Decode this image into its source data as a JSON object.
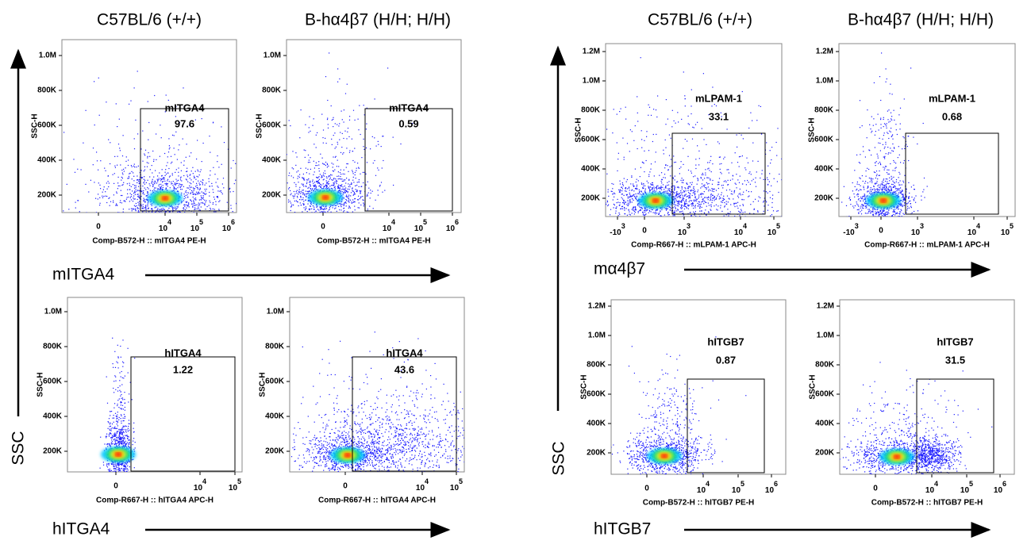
{
  "groups": [
    {
      "headers": [
        "C57BL/6 (+/+)",
        "B-hα4β7 (H/H; H/H)"
      ],
      "side_label": "SSC",
      "rows": [
        {
          "marker_label": "mITGA4",
          "panels": [
            {
              "y_axis_title": "SSC-H",
              "y_ticks": [
                "1.0M",
                "800K",
                "600K",
                "400K",
                "200K"
              ],
              "x_ticks": [
                "0",
                {
                  "base": "10",
                  "power": "4"
                },
                {
                  "base": "10",
                  "power": "5"
                },
                {
                  "base": "10",
                  "power": "6"
                }
              ],
              "x_axis_title": "Comp-B572-H :: mITGA4 PE-H",
              "gate_name": "mITGA4",
              "gate_value": "97.6"
            },
            {
              "y_axis_title": "SSC-H",
              "y_ticks": [
                "1.0M",
                "800K",
                "600K",
                "400K",
                "200K"
              ],
              "x_ticks": [
                "0",
                {
                  "base": "10",
                  "power": "4"
                },
                {
                  "base": "10",
                  "power": "5"
                },
                {
                  "base": "10",
                  "power": "6"
                }
              ],
              "x_axis_title": "Comp-B572-H :: mITGA4 PE-H",
              "gate_name": "mITGA4",
              "gate_value": "0.59"
            }
          ]
        },
        {
          "marker_label": "hITGA4",
          "panels": [
            {
              "y_axis_title": "SSC-H",
              "y_ticks": [
                "1.0M",
                "800K",
                "600K",
                "400K",
                "200K"
              ],
              "x_ticks": [
                "0",
                {
                  "base": "10",
                  "power": "4"
                },
                {
                  "base": "10",
                  "power": "5"
                }
              ],
              "x_axis_title": "Comp-R667-H :: hITGA4 APC-H",
              "gate_name": "hITGA4",
              "gate_value": "1.22"
            },
            {
              "y_axis_title": "SSC-H",
              "y_ticks": [
                "1.0M",
                "800K",
                "600K",
                "400K",
                "200K"
              ],
              "x_ticks": [
                "0",
                {
                  "base": "10",
                  "power": "4"
                },
                {
                  "base": "10",
                  "power": "5"
                }
              ],
              "x_axis_title": "Comp-R667-H :: hITGA4 APC-H",
              "gate_name": "hITGA4",
              "gate_value": "43.6"
            }
          ]
        }
      ]
    },
    {
      "headers": [
        "C57BL/6 (+/+)",
        "B-hα4β7 (H/H; H/H)"
      ],
      "side_label": "SSC",
      "rows": [
        {
          "marker_label": "mα4β7",
          "panels": [
            {
              "y_axis_title": "SSC-H",
              "y_ticks": [
                "1.2M",
                "1.0M",
                "800K",
                "600K",
                "400K",
                "200K"
              ],
              "x_ticks": [
                {
                  "base": "-10",
                  "power": "3"
                },
                "0",
                {
                  "base": "10",
                  "power": "3"
                },
                {
                  "base": "10",
                  "power": "4"
                },
                {
                  "base": "10",
                  "power": "5"
                }
              ],
              "x_axis_title": "Comp-R667-H :: mLPAM-1 APC-H",
              "gate_name": "mLPAM-1",
              "gate_value": "33.1"
            },
            {
              "y_axis_title": "SSC-H",
              "y_ticks": [
                "1.2M",
                "1.0M",
                "800K",
                "600K",
                "400K",
                "200K"
              ],
              "x_ticks": [
                {
                  "base": "-10",
                  "power": "3"
                },
                "0",
                {
                  "base": "10",
                  "power": "3"
                },
                {
                  "base": "10",
                  "power": "4"
                },
                {
                  "base": "10",
                  "power": "5"
                }
              ],
              "x_axis_title": "Comp-R667-H :: mLPAM-1 APC-H",
              "gate_name": "mLPAM-1",
              "gate_value": "0.68"
            }
          ]
        },
        {
          "marker_label": "hITGB7",
          "panels": [
            {
              "y_axis_title": "SSC-H",
              "y_ticks": [
                "1.2M",
                "1.0M",
                "800K",
                "600K",
                "400K",
                "200K"
              ],
              "x_ticks": [
                "0",
                {
                  "base": "10",
                  "power": "4"
                },
                {
                  "base": "10",
                  "power": "5"
                },
                {
                  "base": "10",
                  "power": "6"
                }
              ],
              "x_axis_title": "Comp-B572-H :: hITGB7 PE-H",
              "gate_name": "hITGB7",
              "gate_value": "0.87"
            },
            {
              "y_axis_title": "SSC-H",
              "y_ticks": [
                "1.2M",
                "1.0M",
                "800K",
                "600K",
                "400K",
                "200K"
              ],
              "x_ticks": [
                "0",
                {
                  "base": "10",
                  "power": "4"
                },
                {
                  "base": "10",
                  "power": "5"
                },
                {
                  "base": "10",
                  "power": "6"
                }
              ],
              "x_axis_title": "Comp-B572-H :: hITGB7 PE-H",
              "gate_name": "hITGB7",
              "gate_value": "31.5"
            }
          ]
        }
      ]
    }
  ]
}
